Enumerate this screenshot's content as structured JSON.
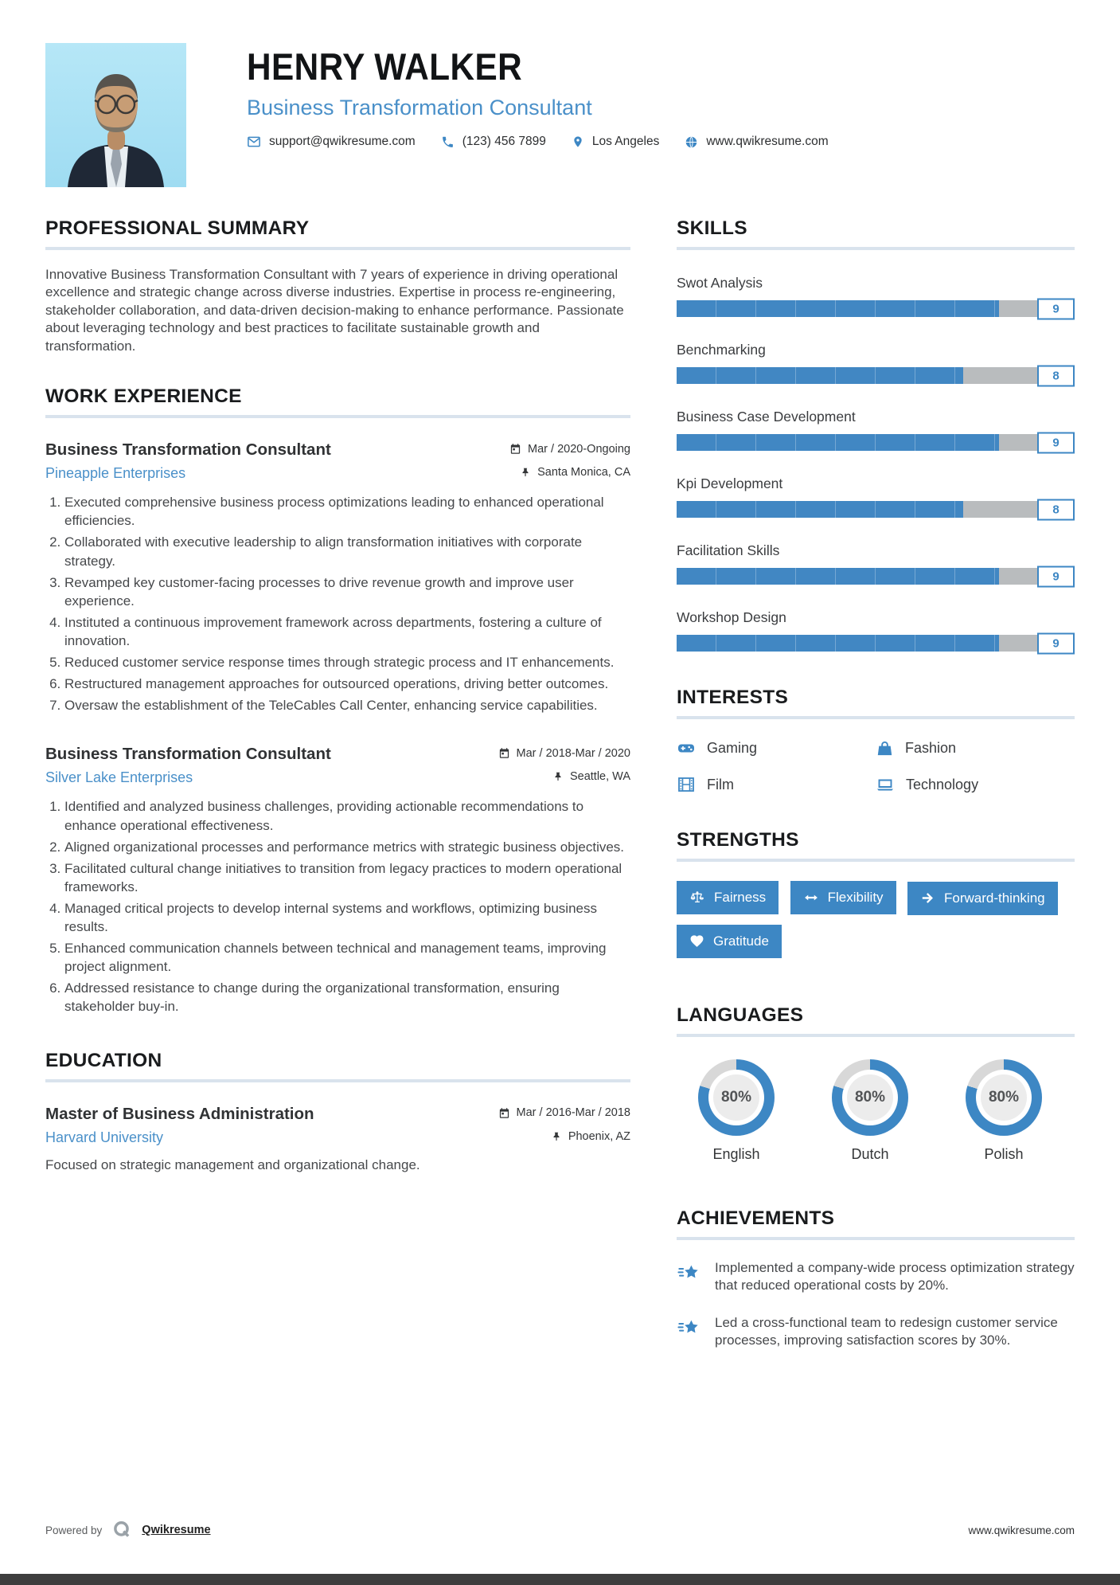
{
  "colors": {
    "accent": "#3d87c4",
    "link_blue": "#4a90c9",
    "bar_track": "#b9bcbe",
    "donut_track": "#d8d8d8",
    "heading_rule": "#d9e3ed",
    "bottom_bar": "#3e3e3e"
  },
  "header": {
    "name": "HENRY WALKER",
    "title": "Business Transformation Consultant",
    "contacts": {
      "email": "support@qwikresume.com",
      "phone": "(123) 456 7899",
      "location": "Los Angeles",
      "website": "www.qwikresume.com"
    }
  },
  "summary": {
    "heading": "PROFESSIONAL SUMMARY",
    "text": "Innovative Business Transformation Consultant with 7 years of experience in driving operational excellence and strategic change across diverse industries. Expertise in process re-engineering, stakeholder collaboration, and data-driven decision-making to enhance performance. Passionate about leveraging technology and best practices to facilitate sustainable growth and transformation."
  },
  "work": {
    "heading": "WORK EXPERIENCE",
    "jobs": [
      {
        "title": "Business Transformation Consultant",
        "company": "Pineapple Enterprises",
        "date": "Mar / 2020-Ongoing",
        "location": "Santa Monica, CA",
        "bullets": [
          "Executed comprehensive business process optimizations leading to enhanced operational efficiencies.",
          "Collaborated with executive leadership to align transformation initiatives with corporate strategy.",
          "Revamped key customer-facing processes to drive revenue growth and improve user experience.",
          "Instituted a continuous improvement framework across departments, fostering a culture of innovation.",
          "Reduced customer service response times through strategic process and IT enhancements.",
          "Restructured management approaches for outsourced operations, driving better outcomes.",
          "Oversaw the establishment of the TeleCables Call Center, enhancing service capabilities."
        ]
      },
      {
        "title": "Business Transformation Consultant",
        "company": "Silver Lake Enterprises",
        "date": "Mar / 2018-Mar / 2020",
        "location": "Seattle, WA",
        "bullets": [
          "Identified and analyzed business challenges, providing actionable recommendations to enhance operational effectiveness.",
          "Aligned organizational processes and performance metrics with strategic business objectives.",
          "Facilitated cultural change initiatives to transition from legacy practices to modern operational frameworks.",
          "Managed critical projects to develop internal systems and workflows, optimizing business results.",
          "Enhanced communication channels between technical and management teams, improving project alignment.",
          "Addressed resistance to change during the organizational transformation, ensuring stakeholder buy-in."
        ]
      }
    ]
  },
  "education": {
    "heading": "EDUCATION",
    "degree": "Master of Business Administration",
    "school": "Harvard University",
    "date": "Mar / 2016-Mar / 2018",
    "location": "Phoenix, AZ",
    "note": "Focused on strategic management and organizational change."
  },
  "skills": {
    "heading": "SKILLS",
    "max": 10,
    "items": [
      {
        "label": "Swot Analysis",
        "value": 9
      },
      {
        "label": "Benchmarking",
        "value": 8
      },
      {
        "label": "Business Case Development",
        "value": 9
      },
      {
        "label": "Kpi Development",
        "value": 8
      },
      {
        "label": "Facilitation Skills",
        "value": 9
      },
      {
        "label": "Workshop Design",
        "value": 9
      }
    ]
  },
  "interests": {
    "heading": "INTERESTS",
    "items": [
      {
        "label": "Gaming",
        "icon": "gamepad-icon"
      },
      {
        "label": "Fashion",
        "icon": "handbag-icon"
      },
      {
        "label": "Film",
        "icon": "film-icon"
      },
      {
        "label": "Technology",
        "icon": "laptop-icon"
      }
    ]
  },
  "strengths": {
    "heading": "STRENGTHS",
    "items": [
      {
        "label": "Fairness",
        "icon": "scales-icon"
      },
      {
        "label": "Flexibility",
        "icon": "left-right-arrow-icon"
      },
      {
        "label": "Forward-thinking",
        "icon": "arrow-right-icon"
      },
      {
        "label": "Gratitude",
        "icon": "heart-icon"
      }
    ]
  },
  "languages": {
    "heading": "LANGUAGES",
    "items": [
      {
        "name": "English",
        "percent": 80,
        "percent_label": "80%"
      },
      {
        "name": "Dutch",
        "percent": 80,
        "percent_label": "80%"
      },
      {
        "name": "Polish",
        "percent": 80,
        "percent_label": "80%"
      }
    ]
  },
  "achievements": {
    "heading": "ACHIEVEMENTS",
    "items": [
      "Implemented a company-wide process optimization strategy that reduced operational costs by 20%.",
      "Led a cross-functional team to redesign customer service processes, improving satisfaction scores by 30%."
    ]
  },
  "footer": {
    "powered_by": "Powered by",
    "brand": "Qwikresume",
    "website": "www.qwikresume.com"
  }
}
